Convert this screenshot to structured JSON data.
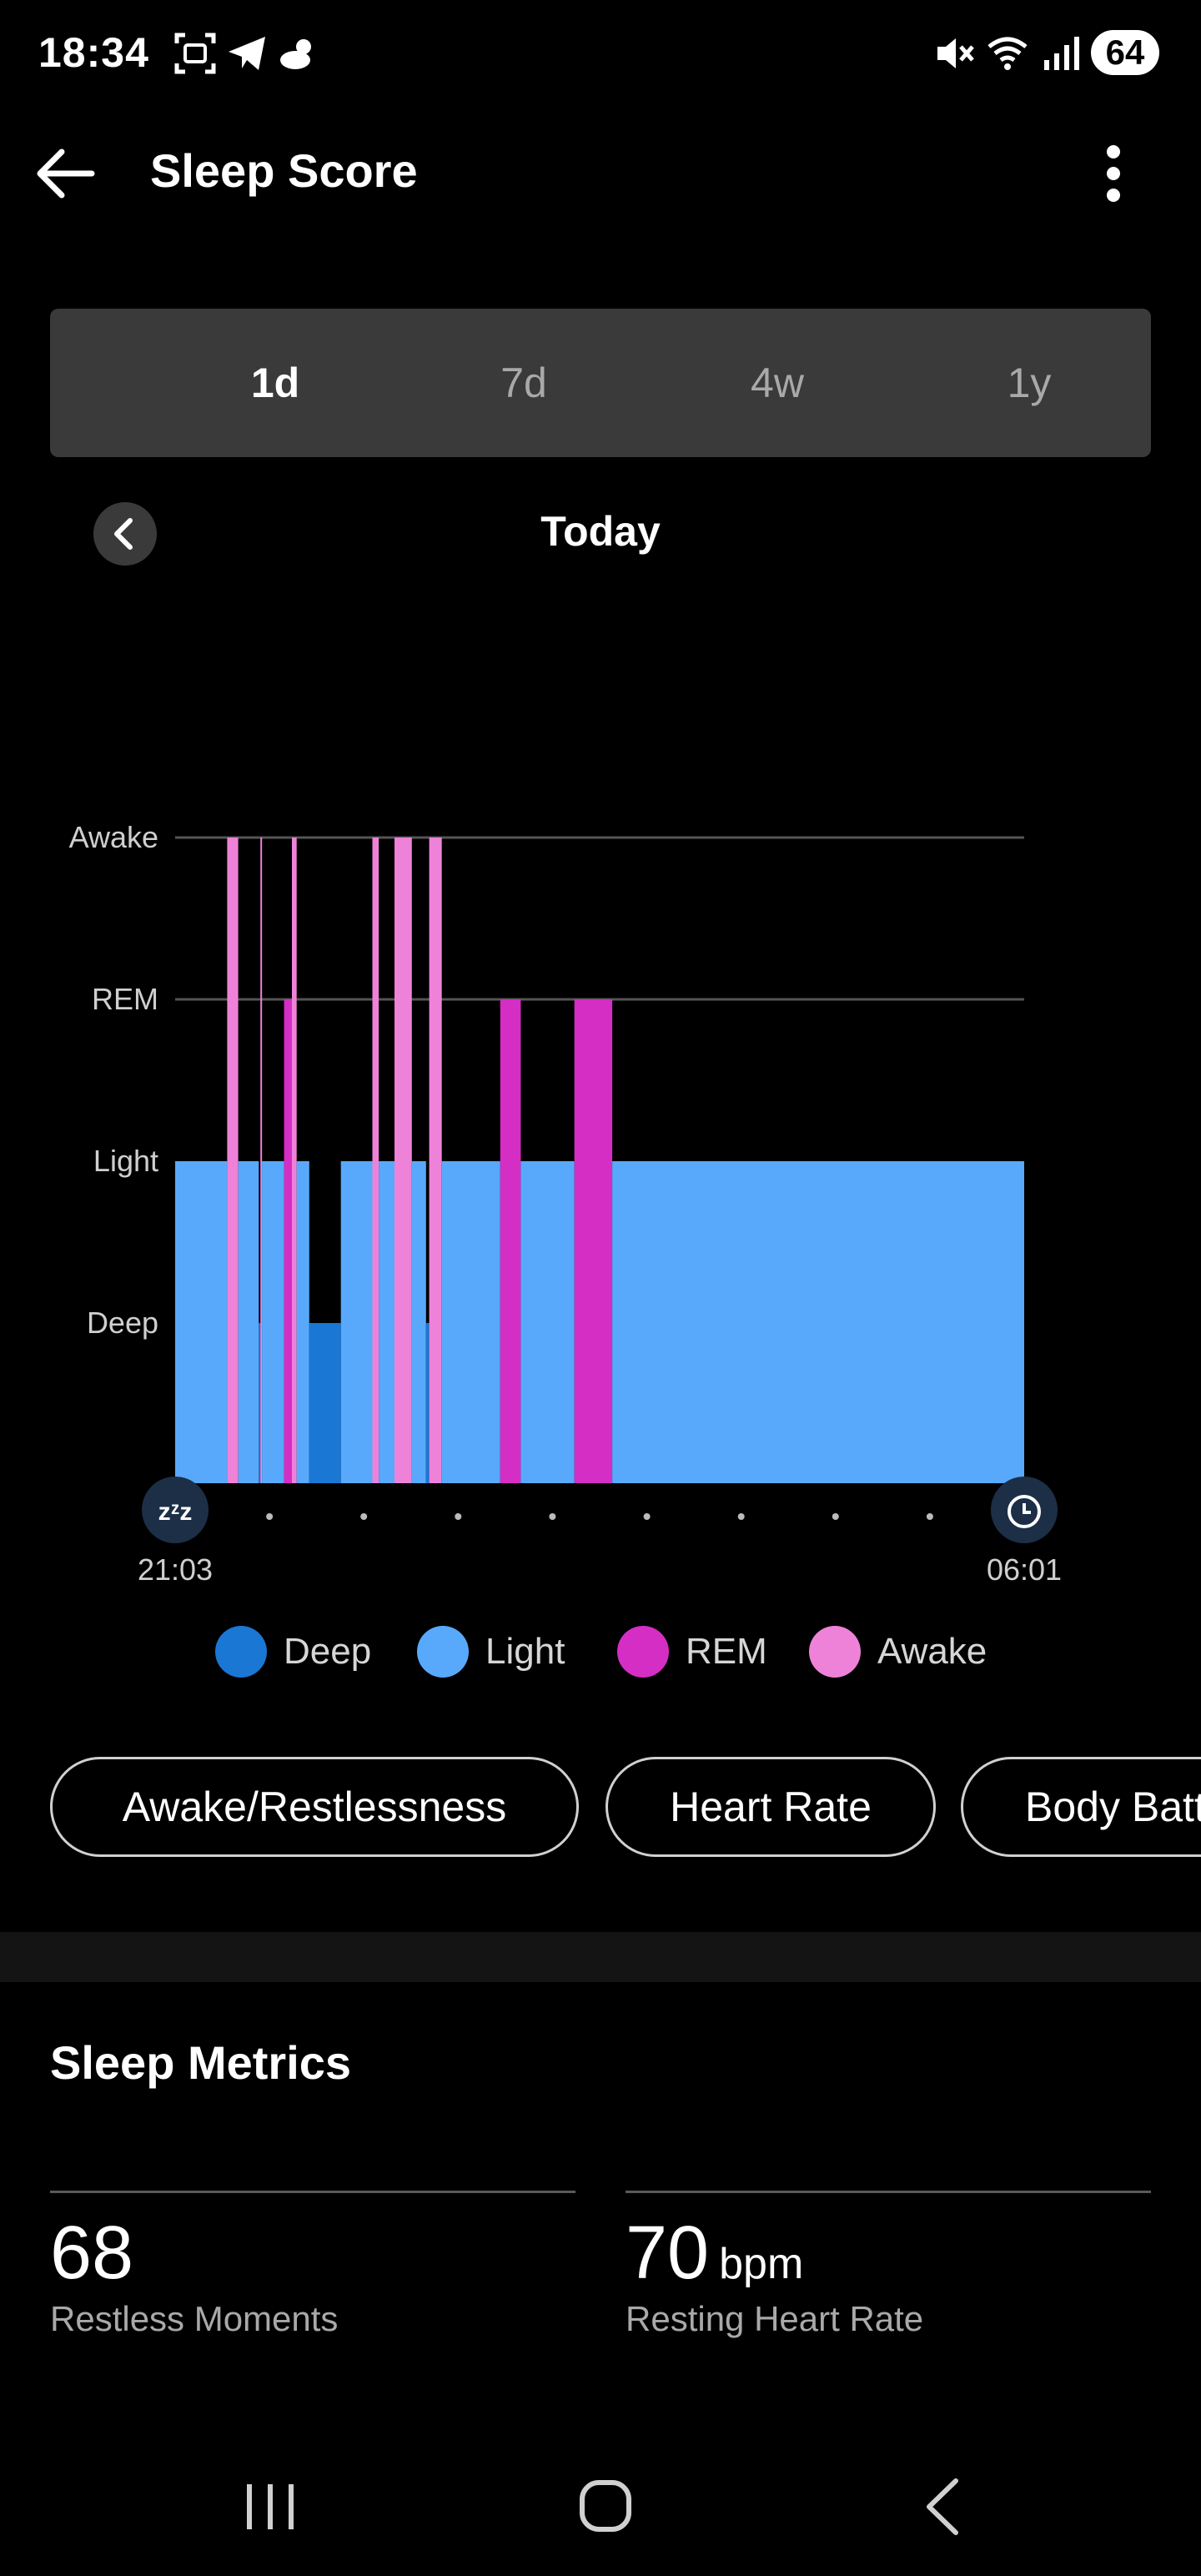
{
  "status_bar": {
    "time": "18:34",
    "left_icons": [
      "screenshot-icon",
      "telegram-icon",
      "weather-icon"
    ],
    "right_icons": [
      "mute-icon",
      "wifi-icon",
      "signal-icon"
    ],
    "battery": "64"
  },
  "app_bar": {
    "title": "Sleep Score"
  },
  "tabs": [
    {
      "label": "1d",
      "active": true
    },
    {
      "label": "7d",
      "active": false
    },
    {
      "label": "4w",
      "active": false
    },
    {
      "label": "1y",
      "active": false
    }
  ],
  "date_nav": {
    "label": "Today"
  },
  "chart_data": {
    "type": "bar",
    "levels": [
      "Deep",
      "Light",
      "REM",
      "Awake"
    ],
    "start_time": "21:03",
    "end_time": "06:01",
    "segments": [
      {
        "stage": "Light",
        "start": "21:03",
        "end": "21:36"
      },
      {
        "stage": "Awake",
        "start": "21:36",
        "end": "21:43"
      },
      {
        "stage": "Light",
        "start": "21:43",
        "end": "21:56"
      },
      {
        "stage": "Deep",
        "start": "21:56",
        "end": "21:57"
      },
      {
        "stage": "Awake",
        "start": "21:57",
        "end": "21:58"
      },
      {
        "stage": "Light",
        "start": "21:58",
        "end": "22:12"
      },
      {
        "stage": "REM",
        "start": "22:12",
        "end": "22:17"
      },
      {
        "stage": "Awake",
        "start": "22:17",
        "end": "22:20"
      },
      {
        "stage": "Light",
        "start": "22:20",
        "end": "22:28"
      },
      {
        "stage": "Deep",
        "start": "22:28",
        "end": "22:48"
      },
      {
        "stage": "Light",
        "start": "22:48",
        "end": "23:08"
      },
      {
        "stage": "Awake",
        "start": "23:08",
        "end": "23:12"
      },
      {
        "stage": "Light",
        "start": "23:12",
        "end": "23:22"
      },
      {
        "stage": "Awake",
        "start": "23:22",
        "end": "23:33"
      },
      {
        "stage": "Light",
        "start": "23:33",
        "end": "23:42"
      },
      {
        "stage": "Deep",
        "start": "23:42",
        "end": "23:44"
      },
      {
        "stage": "Awake",
        "start": "23:44",
        "end": "23:52"
      },
      {
        "stage": "Light",
        "start": "23:52",
        "end": "00:29"
      },
      {
        "stage": "REM",
        "start": "00:29",
        "end": "00:42"
      },
      {
        "stage": "Light",
        "start": "00:42",
        "end": "01:16"
      },
      {
        "stage": "REM",
        "start": "01:16",
        "end": "01:40"
      },
      {
        "stage": "Light",
        "start": "01:40",
        "end": "06:01"
      }
    ],
    "colors": {
      "Deep": "#1a77d4",
      "Light": "#58a9fb",
      "REM": "#d52ec4",
      "Awake": "#ee82d8"
    },
    "grid": true
  },
  "legend": [
    {
      "label": "Deep",
      "color": "#1a77d4"
    },
    {
      "label": "Light",
      "color": "#58a9fb"
    },
    {
      "label": "REM",
      "color": "#d52ec4"
    },
    {
      "label": "Awake",
      "color": "#ee82d8"
    }
  ],
  "chips": [
    {
      "label": "Awake/Restlessness"
    },
    {
      "label": "Heart Rate"
    },
    {
      "label": "Body Battery"
    }
  ],
  "metrics": {
    "title": "Sleep Metrics",
    "items": [
      {
        "value": "68",
        "unit": "",
        "label": "Restless Moments"
      },
      {
        "value": "70",
        "unit": "bpm",
        "label": "Resting Heart Rate"
      }
    ]
  },
  "nav_bar": {
    "buttons": [
      "recents-icon",
      "home-icon",
      "back-icon"
    ]
  }
}
